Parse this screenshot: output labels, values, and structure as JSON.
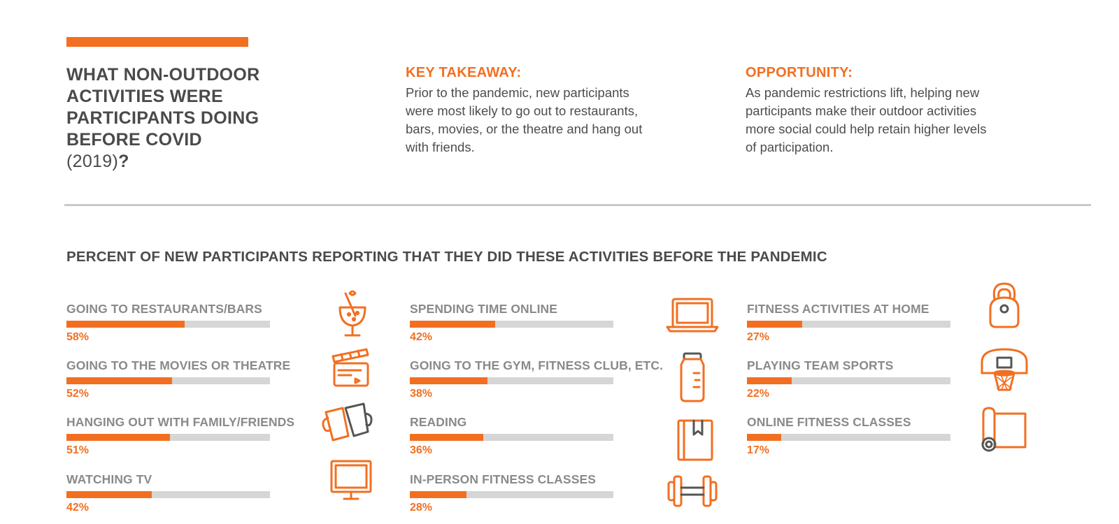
{
  "header": {
    "question_line1": "WHAT NON-OUTDOOR",
    "question_line2": "ACTIVITIES WERE",
    "question_line3": "PARTICIPANTS DOING",
    "question_line4": "BEFORE COVID",
    "question_year": "(2019)",
    "question_mark": "?"
  },
  "key_takeaway": {
    "heading": "KEY TAKEAWAY:",
    "line1": "Prior to the pandemic, new participants",
    "line2": "were most likely to go out to restaurants,",
    "line3": "bars, movies, or the theatre and hang out",
    "line4": "with friends."
  },
  "opportunity": {
    "heading": "OPPORTUNITY:",
    "line1": "As pandemic restrictions lift, helping new",
    "line2": "participants make their outdoor activities",
    "line3": "more social could help retain higher levels",
    "line4": "of participation."
  },
  "colors": {
    "accent": "#f26f21",
    "track": "#d6d6d6",
    "heading_text": "#4a4a4a",
    "label_text": "#8a8a8a",
    "icon_secondary": "#555555"
  },
  "chart_data": {
    "type": "bar",
    "title": "PERCENT OF NEW PARTICIPANTS REPORTING THAT THEY DID THESE ACTIVITIES BEFORE THE PANDEMIC",
    "unit": "%",
    "ylim": [
      0,
      100
    ],
    "categories": [
      "GOING TO RESTAURANTS/BARS",
      "GOING TO THE MOVIES OR THEATRE",
      "HANGING OUT WITH FAMILY/FRIENDS",
      "WATCHING TV",
      "SPENDING TIME ONLINE",
      "GOING TO THE GYM, FITNESS CLUB, ETC.",
      "READING",
      "IN-PERSON FITNESS CLASSES",
      "FITNESS ACTIVITIES AT HOME",
      "PLAYING TEAM SPORTS",
      "ONLINE FITNESS CLASSES"
    ],
    "values": [
      58,
      52,
      51,
      42,
      42,
      38,
      36,
      28,
      27,
      22,
      17
    ],
    "value_labels": [
      "58%",
      "52%",
      "51%",
      "42%",
      "42%",
      "38%",
      "36%",
      "28%",
      "27%",
      "22%",
      "17%"
    ],
    "icons": [
      "cocktail-glass-icon",
      "clapperboard-icon",
      "mugs-icon",
      "tv-icon",
      "laptop-icon",
      "water-bottle-icon",
      "book-icon",
      "dumbbell-icon",
      "kettlebell-icon",
      "basketball-hoop-icon",
      "yoga-mat-icon"
    ]
  }
}
